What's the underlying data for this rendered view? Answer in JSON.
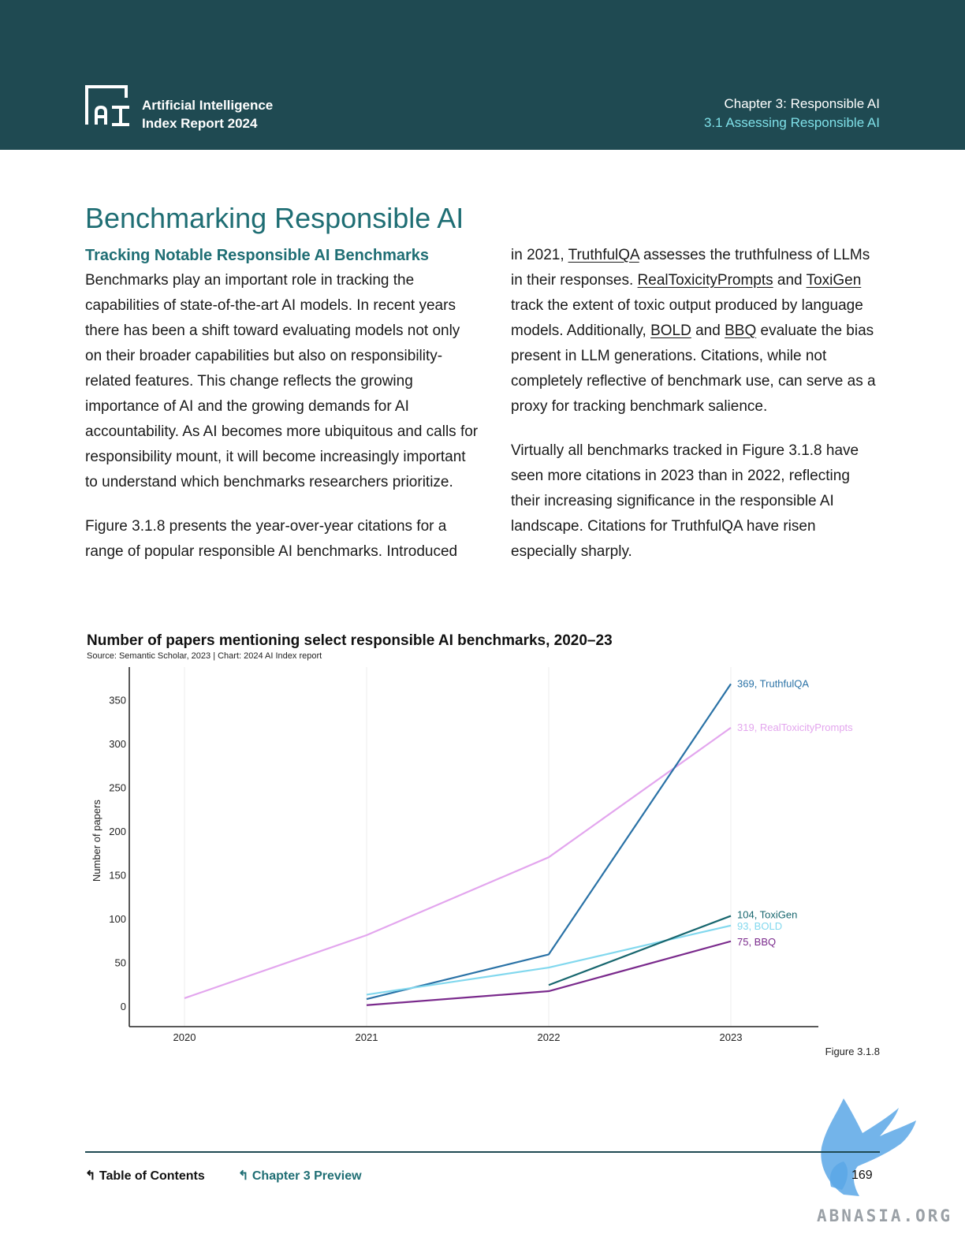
{
  "header": {
    "brand_line1": "Artificial Intelligence",
    "brand_line2": "Index Report 2024",
    "chapter": "Chapter 3: Responsible AI",
    "section": "3.1 Assessing Responsible AI"
  },
  "page": {
    "title": "Benchmarking Responsible AI",
    "subtitle": "Tracking Notable Responsible AI Benchmarks",
    "left_p1": "Benchmarks play an important role in tracking the capabilities of state-of-the-art AI models. In recent years there has been a shift toward evaluating models not only on their broader capabilities but also on responsibility-related features. This change reflects the growing importance of AI and the growing demands for AI accountability. As AI becomes more ubiquitous and calls for responsibility mount, it will become increasingly important to understand which benchmarks researchers prioritize.",
    "left_p2": "Figure 3.1.8 presents the year-over-year citations for a range of popular responsible AI benchmarks. Introduced",
    "right_p1": {
      "t1": "in 2021, ",
      "l1": "TruthfulQA",
      "t2": " assesses the truthfulness of LLMs in their responses. ",
      "l2": "RealToxicityPrompts",
      "t3": " and ",
      "l3": "ToxiGen",
      "t4": " track the extent of toxic output produced by language models. Additionally, ",
      "l4": "BOLD",
      "t5": " and ",
      "l5": "BBQ",
      "t6": " evaluate the bias present in LLM generations. Citations, while not completely reflective of benchmark use, can serve as a proxy for tracking benchmark salience."
    },
    "right_p2": "Virtually all benchmarks tracked in Figure 3.1.8 have seen more citations in 2023 than in 2022, reflecting their increasing significance in the responsible AI landscape. Citations for TruthfulQA have risen especially sharply.",
    "figure_label": "Figure 3.1.8"
  },
  "chart_data": {
    "type": "line",
    "title": "Number of papers mentioning select responsible AI benchmarks, 2020–23",
    "source": "Source: Semantic Scholar, 2023 | Chart: 2024 AI Index report",
    "ylabel": "Number of papers",
    "xlabel": "",
    "x": [
      "2020",
      "2021",
      "2022",
      "2023"
    ],
    "ylim": [
      0,
      400
    ],
    "yticks": [
      0,
      50,
      100,
      150,
      200,
      250,
      300,
      350
    ],
    "grid": "vertical",
    "series": [
      {
        "name": "RealToxicityPrompts",
        "color": "#e3a6ee",
        "values": [
          10,
          82,
          171,
          319
        ],
        "end_label": "319, RealToxicityPrompts"
      },
      {
        "name": "TruthfulQA",
        "color": "#2a72a6",
        "values": [
          null,
          9,
          60,
          369
        ],
        "end_label": "369, TruthfulQA"
      },
      {
        "name": "BOLD",
        "color": "#82d8ee",
        "values": [
          null,
          14,
          45,
          93
        ],
        "end_label": "93, BOLD"
      },
      {
        "name": "ToxiGen",
        "color": "#17666e",
        "values": [
          null,
          null,
          25,
          104
        ],
        "end_label": "104, ToxiGen"
      },
      {
        "name": "BBQ",
        "color": "#7a2a8c",
        "values": [
          null,
          2,
          18,
          75
        ],
        "end_label": "75, BBQ"
      }
    ]
  },
  "footer": {
    "toc": "Table of Contents",
    "chapter_preview": "Chapter 3 Preview",
    "page_number": "169"
  },
  "watermark": {
    "text": "ABNASIA.ORG",
    "color": "#5aa7e6"
  }
}
